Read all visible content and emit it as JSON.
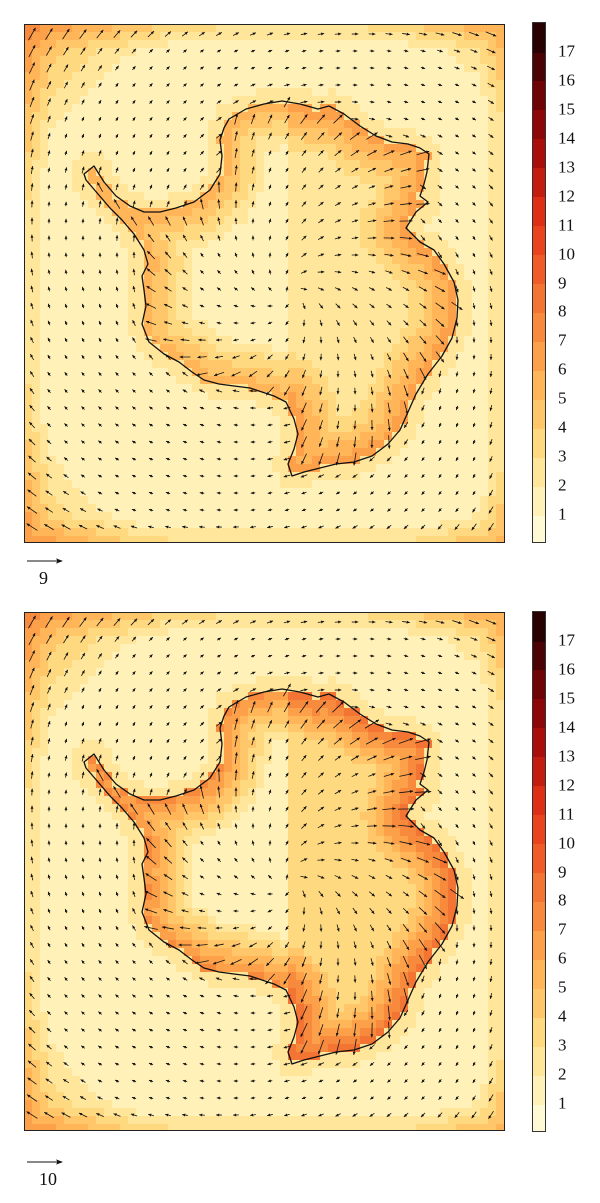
{
  "colorbar": {
    "labels": [
      "1",
      "2",
      "3",
      "4",
      "5",
      "6",
      "7",
      "8",
      "9",
      "10",
      "11",
      "12",
      "13",
      "14",
      "15",
      "16",
      "17"
    ],
    "colors": [
      "#fffad6",
      "#fff1b8",
      "#ffe69a",
      "#ffd97f",
      "#ffc66a",
      "#ffb558",
      "#fda04a",
      "#f88a3d",
      "#f47433",
      "#ef5c28",
      "#e9441e",
      "#dc2f16",
      "#c31d0f",
      "#a80f0b",
      "#8c0707",
      "#6e0405",
      "#4a0204",
      "#2a0102"
    ]
  },
  "panels": [
    {
      "name": "top",
      "reference_vector_label": "9",
      "intensity": 1.0
    },
    {
      "name": "bottom",
      "reference_vector_label": "10",
      "intensity": 1.35
    }
  ]
}
